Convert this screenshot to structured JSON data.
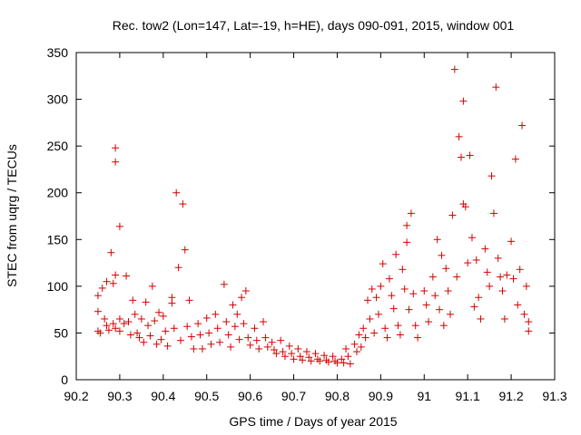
{
  "chart_data": {
    "type": "scatter",
    "title": "Rec. tow2 (Lon=147, Lat=-19, h=HE), days 090-091, 2015, window 001",
    "xlabel": "GPS time / Days of year 2015",
    "ylabel": "STEC from uqrg / TECUs",
    "xlim": [
      90.2,
      91.3
    ],
    "ylim": [
      0,
      350
    ],
    "xticks": [
      "90.2",
      "90.3",
      "90.4",
      "90.5",
      "90.6",
      "90.7",
      "90.8",
      "90.9",
      "91",
      "91.1",
      "91.2",
      "91.3"
    ],
    "yticks": [
      "0",
      "50",
      "100",
      "150",
      "200",
      "250",
      "300",
      "350"
    ],
    "grid": false,
    "marker": "plus",
    "color": "#d40000",
    "series": [
      {
        "name": "",
        "points": [
          [
            90.25,
            90
          ],
          [
            90.25,
            73
          ],
          [
            90.25,
            52
          ],
          [
            90.255,
            50
          ],
          [
            90.26,
            98
          ],
          [
            90.265,
            65
          ],
          [
            90.27,
            105
          ],
          [
            90.27,
            58
          ],
          [
            90.275,
            53
          ],
          [
            90.28,
            136
          ],
          [
            90.285,
            103
          ],
          [
            90.285,
            60
          ],
          [
            90.29,
            248
          ],
          [
            90.29,
            233
          ],
          [
            90.29,
            112
          ],
          [
            90.29,
            55
          ],
          [
            90.3,
            164
          ],
          [
            90.3,
            65
          ],
          [
            90.3,
            52
          ],
          [
            90.31,
            60
          ],
          [
            90.315,
            111
          ],
          [
            90.32,
            62
          ],
          [
            90.325,
            48
          ],
          [
            90.33,
            85
          ],
          [
            90.335,
            70
          ],
          [
            90.34,
            50
          ],
          [
            90.345,
            45
          ],
          [
            90.35,
            65
          ],
          [
            90.355,
            40
          ],
          [
            90.36,
            83
          ],
          [
            90.365,
            58
          ],
          [
            90.37,
            47
          ],
          [
            90.375,
            100
          ],
          [
            90.38,
            63
          ],
          [
            90.385,
            38
          ],
          [
            90.39,
            72
          ],
          [
            90.395,
            43
          ],
          [
            90.4,
            68
          ],
          [
            90.405,
            52
          ],
          [
            90.41,
            36
          ],
          [
            90.42,
            88
          ],
          [
            90.42,
            82
          ],
          [
            90.425,
            55
          ],
          [
            90.43,
            200
          ],
          [
            90.435,
            120
          ],
          [
            90.44,
            42
          ],
          [
            90.445,
            188
          ],
          [
            90.45,
            139
          ],
          [
            90.455,
            57
          ],
          [
            90.46,
            85
          ],
          [
            90.465,
            46
          ],
          [
            90.47,
            33
          ],
          [
            90.48,
            60
          ],
          [
            90.485,
            48
          ],
          [
            90.49,
            33
          ],
          [
            90.5,
            66
          ],
          [
            90.505,
            50
          ],
          [
            90.51,
            38
          ],
          [
            90.52,
            70
          ],
          [
            90.525,
            55
          ],
          [
            90.53,
            40
          ],
          [
            90.54,
            102
          ],
          [
            90.545,
            62
          ],
          [
            90.55,
            48
          ],
          [
            90.555,
            35
          ],
          [
            90.56,
            80
          ],
          [
            90.565,
            57
          ],
          [
            90.57,
            70
          ],
          [
            90.575,
            43
          ],
          [
            90.58,
            88
          ],
          [
            90.585,
            60
          ],
          [
            90.59,
            95
          ],
          [
            90.595,
            45
          ],
          [
            90.6,
            37
          ],
          [
            90.61,
            55
          ],
          [
            90.615,
            42
          ],
          [
            90.62,
            33
          ],
          [
            90.63,
            62
          ],
          [
            90.635,
            45
          ],
          [
            90.64,
            35
          ],
          [
            90.65,
            40
          ],
          [
            90.655,
            32
          ],
          [
            90.66,
            28
          ],
          [
            90.67,
            42
          ],
          [
            90.675,
            30
          ],
          [
            90.68,
            25
          ],
          [
            90.69,
            36
          ],
          [
            90.695,
            28
          ],
          [
            90.7,
            22
          ],
          [
            90.71,
            33
          ],
          [
            90.715,
            25
          ],
          [
            90.72,
            21
          ],
          [
            90.73,
            30
          ],
          [
            90.735,
            24
          ],
          [
            90.74,
            20
          ],
          [
            90.75,
            28
          ],
          [
            90.755,
            22
          ],
          [
            90.76,
            20
          ],
          [
            90.77,
            26
          ],
          [
            90.775,
            21
          ],
          [
            90.78,
            19
          ],
          [
            90.79,
            25
          ],
          [
            90.795,
            20
          ],
          [
            90.8,
            18
          ],
          [
            90.81,
            22
          ],
          [
            90.815,
            18
          ],
          [
            90.82,
            33
          ],
          [
            90.825,
            25
          ],
          [
            90.83,
            17
          ],
          [
            90.84,
            38
          ],
          [
            90.845,
            30
          ],
          [
            90.85,
            48
          ],
          [
            90.855,
            35
          ],
          [
            90.86,
            55
          ],
          [
            90.865,
            45
          ],
          [
            90.87,
            85
          ],
          [
            90.875,
            65
          ],
          [
            90.88,
            97
          ],
          [
            90.885,
            50
          ],
          [
            90.89,
            88
          ],
          [
            90.895,
            70
          ],
          [
            90.9,
            100
          ],
          [
            90.905,
            124
          ],
          [
            90.91,
            55
          ],
          [
            90.915,
            45
          ],
          [
            90.92,
            108
          ],
          [
            90.925,
            90
          ],
          [
            90.93,
            76
          ],
          [
            90.935,
            134
          ],
          [
            90.94,
            58
          ],
          [
            90.945,
            48
          ],
          [
            90.95,
            118
          ],
          [
            90.955,
            97
          ],
          [
            90.96,
            147
          ],
          [
            90.96,
            165
          ],
          [
            90.965,
            75
          ],
          [
            90.97,
            178
          ],
          [
            90.975,
            92
          ],
          [
            90.98,
            58
          ],
          [
            90.985,
            45
          ],
          [
            91.0,
            95
          ],
          [
            91.005,
            80
          ],
          [
            91.01,
            62
          ],
          [
            91.02,
            110
          ],
          [
            91.025,
            90
          ],
          [
            91.03,
            150
          ],
          [
            91.035,
            75
          ],
          [
            91.04,
            133
          ],
          [
            91.045,
            58
          ],
          [
            91.05,
            119
          ],
          [
            91.055,
            95
          ],
          [
            91.06,
            70
          ],
          [
            91.065,
            176
          ],
          [
            91.07,
            332
          ],
          [
            91.075,
            110
          ],
          [
            91.08,
            260
          ],
          [
            91.085,
            238
          ],
          [
            91.09,
            298
          ],
          [
            91.09,
            188
          ],
          [
            91.095,
            185
          ],
          [
            91.1,
            125
          ],
          [
            91.105,
            240
          ],
          [
            91.11,
            152
          ],
          [
            91.115,
            78
          ],
          [
            91.12,
            128
          ],
          [
            91.125,
            88
          ],
          [
            91.13,
            65
          ],
          [
            91.14,
            140
          ],
          [
            91.145,
            115
          ],
          [
            91.15,
            100
          ],
          [
            91.155,
            218
          ],
          [
            91.16,
            178
          ],
          [
            91.165,
            313
          ],
          [
            91.17,
            130
          ],
          [
            91.175,
            110
          ],
          [
            91.18,
            95
          ],
          [
            91.185,
            65
          ],
          [
            91.19,
            112
          ],
          [
            91.2,
            148
          ],
          [
            91.205,
            108
          ],
          [
            91.21,
            236
          ],
          [
            91.215,
            80
          ],
          [
            91.22,
            118
          ],
          [
            91.225,
            272
          ],
          [
            91.23,
            70
          ],
          [
            91.235,
            100
          ],
          [
            91.24,
            62
          ],
          [
            91.24,
            52
          ]
        ]
      }
    ]
  }
}
